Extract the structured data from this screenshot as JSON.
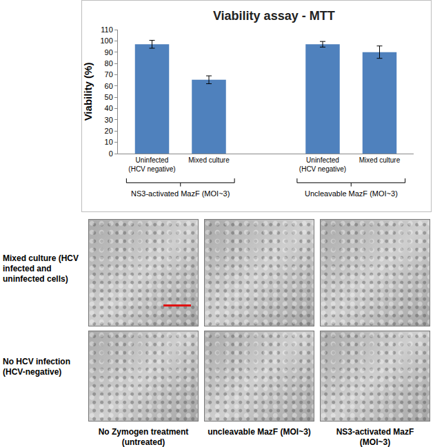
{
  "chart_data": {
    "type": "bar",
    "title": "Viability assay - MTT",
    "y_label": "Viability (%)",
    "categories": [
      "Uninfected (HCV negative)",
      "Mixed culture",
      "Uninfected (HCV negative)",
      "Mixed culture"
    ],
    "groups": [
      {
        "label": "NS3-activated MazF (MOI~3)",
        "size": 2
      },
      {
        "label": "Uncleavable MazF (MOI~3)",
        "size": 2
      }
    ],
    "values": [
      97,
      65.5,
      97,
      90
    ],
    "errors": [
      3.5,
      3.5,
      2.5,
      5.5
    ],
    "color": "#4f81bd",
    "ylim": [
      0,
      110
    ],
    "yticks": [
      0,
      10,
      20,
      30,
      40,
      50,
      60,
      70,
      80,
      90,
      100,
      110
    ],
    "grid": false
  },
  "image_grid": {
    "rows": [
      "Mixed culture (HCV infected and uninfected cells)",
      "No HCV infection (HCV-negative)"
    ],
    "columns": [
      "No Zymogen treatment (untreated)",
      "uncleavable MazF (MOI~3)",
      "NS3-activated MazF (MOI~3)"
    ]
  }
}
